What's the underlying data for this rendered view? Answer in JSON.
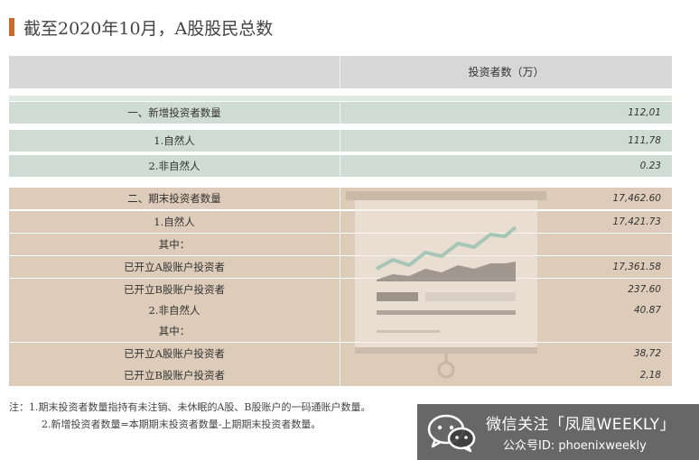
{
  "title": "截至2020年10月，A股股民总数",
  "table": {
    "header_col1": "",
    "header_col2": "投资者数（万）",
    "rows": [
      {
        "label": "一、新增投资者数量",
        "value": "112,01",
        "group": "new"
      },
      {
        "label": "1.自然人",
        "value": "111,78",
        "group": "new"
      },
      {
        "label": "2.非自然人",
        "value": "0.23",
        "group": "new"
      },
      {
        "label": "二、期末投资者数量",
        "value": "17,462.60",
        "group": "end"
      },
      {
        "label": "1.自然人",
        "value": "17,421.73",
        "group": "end"
      },
      {
        "label": "其中：",
        "value": "",
        "group": "end"
      },
      {
        "label": "已开立A股账户投资者",
        "value": "17,361.58",
        "group": "end"
      },
      {
        "label": "已开立B股账户投资者",
        "value": "237.60",
        "group": "end"
      },
      {
        "label": "2.非自然人",
        "value": "40.87",
        "group": "end"
      },
      {
        "label": "其中：",
        "value": "",
        "group": "end"
      },
      {
        "label": "已开立A股账户投资者",
        "value": "38,72",
        "group": "end"
      },
      {
        "label": "已开立B股账户投资者",
        "value": "2,18",
        "group": "end"
      }
    ]
  },
  "notes": [
    "注：1.期末投资者数量指持有未注销、未休眠的A股、B股账户的一码通账户数量。",
    "2.新增投资者数量=本期期末投资者数量-上期期末投资者数量。"
  ],
  "watermark": {
    "line1": "微信关注「凤凰WEEKLY」",
    "line2": "公众号ID: phoenixweekly",
    "icon": "wechat-icon"
  },
  "illustration_icon": "presentation-board-icon",
  "colors": {
    "accent": "#c8692e",
    "header_bg": "#d7d7d7",
    "green_band": "#cfdcd5",
    "beige_band": "#ddccb9"
  }
}
